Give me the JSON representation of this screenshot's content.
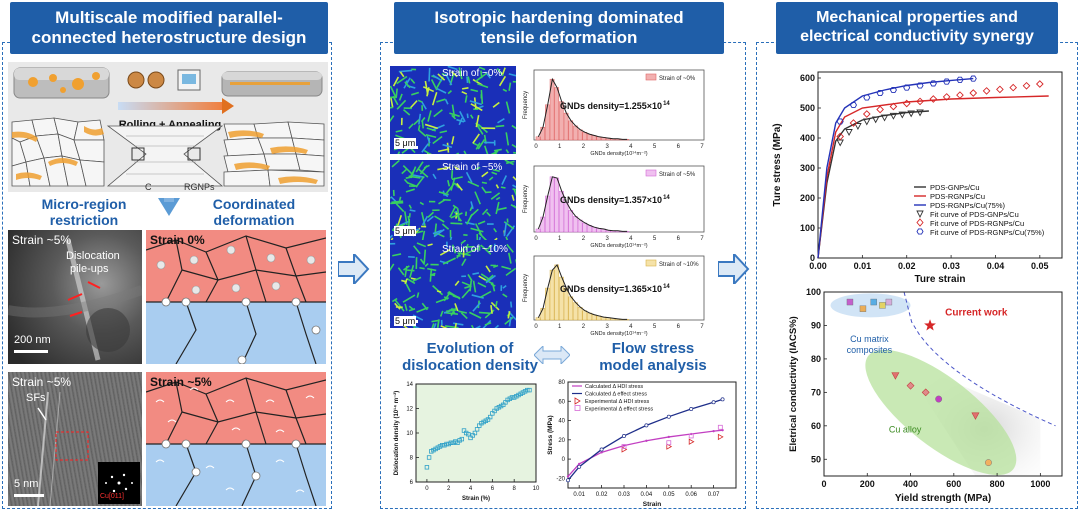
{
  "panel1": {
    "title_lines": [
      "Multiscale modified parallel-",
      "connected heterostructure design"
    ],
    "process_label": "Rolling + Annealing",
    "label_c": "C",
    "label_rgnps": "RGNPs",
    "sub_left_lines": [
      "Micro-region",
      "restriction"
    ],
    "sub_right_lines": [
      "Coordinated",
      "deformation"
    ],
    "tem1": {
      "strain": "Strain ~5%",
      "note_lines": [
        "Dislocation",
        "pile-ups"
      ],
      "scale": "200 nm"
    },
    "tem2": {
      "strain": "Strain ~5%",
      "note": "SFs",
      "scale": "5 nm",
      "fft": "Cu[011]"
    },
    "schem1": {
      "strain": "Strain 0%"
    },
    "schem2": {
      "strain": "Strain ~5%"
    }
  },
  "panel2": {
    "title_lines": [
      "Isotropic hardening dominated",
      "tensile deformation"
    ],
    "maps": [
      {
        "strain": "Strain of ~0%",
        "scale": "5 μm"
      },
      {
        "strain": "Strain of ~5%",
        "scale": "5 μm"
      },
      {
        "strain": "Strain of ~10%",
        "scale": "5 μm"
      }
    ],
    "histograms": [
      {
        "legend": "Strain of ~0%",
        "text": "GNDs density=1.255×10",
        "exp": "14",
        "color": "#e06666",
        "fill": "#f2b0b0"
      },
      {
        "legend": "Strain of ~5%",
        "text": "GNDs density=1.357×10",
        "exp": "14",
        "color": "#d36bd6",
        "fill": "#f0c0f0"
      },
      {
        "legend": "Strain of ~10%",
        "text": "GNDs density=1.365×10",
        "exp": "14",
        "color": "#d9b24a",
        "fill": "#f5e2a8"
      }
    ],
    "hist_ylabel": "Frequency",
    "hist_xlabel": "GNDs density(10¹⁴m⁻²)",
    "hist_ticks": [
      "0",
      "1",
      "2",
      "3",
      "4",
      "5",
      "6",
      "7"
    ],
    "evo_title_lines": [
      "Evolution of",
      "dislocation density"
    ],
    "flow_title_lines": [
      "Flow stress",
      "model analysis"
    ]
  },
  "panel3": {
    "title_lines": [
      "Mechanical properties and",
      "electrical conductivity synergy"
    ],
    "ss_ylabel": "Ture stress (MPa)",
    "ss_xlabel": "Ture strain",
    "legend": [
      {
        "text": "PDS-GNPs/Cu",
        "kind": "line",
        "color": "#333333"
      },
      {
        "text": "PDS-RGNPs/Cu",
        "kind": "line",
        "color": "#d62728"
      },
      {
        "text": "PDS-RGNPs/Cu(75%)",
        "kind": "line",
        "color": "#2433b8"
      },
      {
        "text": "Fit curve of PDS-GNPs/Cu",
        "kind": "tri",
        "color": "#333333"
      },
      {
        "text": "Fit curve of PDS-RGNPs/Cu",
        "kind": "diamond",
        "color": "#d62728"
      },
      {
        "text": "Fit curve of PDS-RGNPs/Cu(75%)",
        "kind": "hex",
        "color": "#2433b8"
      }
    ],
    "ec_ylabel": "Eletrical conductivity (IACS%)",
    "ec_xlabel": "Yield strength (MPa)",
    "current_work": "Current work",
    "cu_matrix_lines": [
      "Cu matrix",
      "composites"
    ],
    "cu_alloy": "Cu alloy"
  },
  "chart_data": [
    {
      "type": "scatter",
      "title": "",
      "xlabel": "Strain (%)",
      "ylabel": "Dislocation density (10¹⁴ m⁻²)",
      "xlim": [
        -1,
        10
      ],
      "ylim": [
        6,
        14
      ],
      "x_ticks": [
        0,
        2,
        4,
        6,
        8,
        10
      ],
      "y_ticks": [
        6,
        8,
        10,
        12,
        14
      ],
      "x": [
        0,
        0.2,
        0.4,
        0.6,
        0.8,
        1.0,
        1.2,
        1.4,
        1.6,
        1.8,
        2.0,
        2.2,
        2.4,
        2.6,
        2.8,
        3.0,
        3.2,
        3.4,
        3.6,
        3.8,
        4.0,
        4.2,
        4.4,
        4.6,
        4.8,
        5.0,
        5.2,
        5.4,
        5.6,
        5.8,
        6.0,
        6.2,
        6.4,
        6.6,
        6.8,
        7.0,
        7.2,
        7.4,
        7.6,
        7.8,
        8.0,
        8.2,
        8.4,
        8.6,
        8.8,
        9.0,
        9.2,
        9.4
      ],
      "y": [
        7.2,
        8.0,
        8.5,
        8.6,
        8.7,
        8.8,
        8.9,
        9.0,
        9.0,
        9.1,
        9.1,
        9.2,
        9.2,
        9.3,
        9.2,
        9.4,
        9.5,
        10.2,
        10.0,
        9.9,
        9.6,
        9.8,
        10.0,
        10.3,
        10.6,
        10.8,
        10.9,
        11.0,
        11.1,
        11.3,
        11.6,
        11.8,
        12.0,
        12.1,
        12.2,
        12.3,
        12.5,
        12.7,
        12.8,
        12.9,
        12.9,
        13.0,
        13.1,
        13.2,
        13.3,
        13.4,
        13.5,
        13.5
      ]
    },
    {
      "type": "line",
      "title": "",
      "xlabel": "Strain",
      "ylabel": "Stress (MPa)",
      "xlim": [
        0.005,
        0.08
      ],
      "ylim": [
        -30,
        80
      ],
      "x_ticks": [
        0.01,
        0.02,
        0.03,
        0.04,
        0.05,
        0.06,
        0.07
      ],
      "y_ticks": [
        -20,
        0,
        20,
        40,
        60,
        80
      ],
      "series": [
        {
          "name": "Calculated Δ HDI stress",
          "color": "#c23fc2",
          "x": [
            0.005,
            0.01,
            0.02,
            0.03,
            0.04,
            0.05,
            0.06,
            0.07,
            0.074
          ],
          "y": [
            -18,
            -5,
            7,
            14,
            19,
            23,
            26,
            29,
            30
          ]
        },
        {
          "name": "Calculated Δ effect stress",
          "color": "#1f2f8a",
          "x": [
            0.005,
            0.01,
            0.02,
            0.03,
            0.04,
            0.05,
            0.06,
            0.07,
            0.074
          ],
          "y": [
            -22,
            -8,
            10,
            24,
            35,
            44,
            52,
            59,
            62
          ]
        },
        {
          "name": "Experimental Δ HDI stress",
          "color": "#d62728",
          "x": [
            0.03,
            0.05,
            0.06,
            0.073
          ],
          "y": [
            10,
            13,
            18,
            23
          ]
        },
        {
          "name": "Experimental Δ effect stress",
          "color": "#d66bd6",
          "x": [
            0.03,
            0.05,
            0.06,
            0.073
          ],
          "y": [
            13,
            17,
            24,
            33
          ]
        }
      ]
    },
    {
      "type": "line",
      "title": "",
      "xlabel": "Ture strain",
      "ylabel": "Ture stress (MPa)",
      "xlim": [
        0,
        0.055
      ],
      "ylim": [
        0,
        620
      ],
      "x_ticks": [
        0.0,
        0.01,
        0.02,
        0.03,
        0.04,
        0.05
      ],
      "y_ticks": [
        0,
        100,
        200,
        300,
        400,
        500,
        600
      ],
      "series": [
        {
          "name": "PDS-GNPs/Cu",
          "color": "#333333",
          "x": [
            0,
            0.002,
            0.004,
            0.006,
            0.01,
            0.015,
            0.02,
            0.025
          ],
          "y": [
            0,
            250,
            390,
            430,
            460,
            475,
            485,
            490
          ]
        },
        {
          "name": "PDS-RGNPs/Cu",
          "color": "#d62728",
          "x": [
            0,
            0.002,
            0.004,
            0.006,
            0.01,
            0.02,
            0.03,
            0.04,
            0.052
          ],
          "y": [
            0,
            270,
            420,
            470,
            500,
            520,
            530,
            535,
            540
          ]
        },
        {
          "name": "PDS-RGNPs/Cu(75%)",
          "color": "#2433b8",
          "x": [
            0,
            0.002,
            0.004,
            0.006,
            0.01,
            0.015,
            0.02,
            0.025,
            0.03,
            0.035
          ],
          "y": [
            0,
            300,
            450,
            500,
            540,
            560,
            575,
            585,
            592,
            598
          ]
        },
        {
          "name": "Fit curve of PDS-GNPs/Cu",
          "color": "#333333",
          "marker": "triangle",
          "x": [
            0.005,
            0.007,
            0.009,
            0.011,
            0.013,
            0.015,
            0.017,
            0.019,
            0.021,
            0.023
          ],
          "y": [
            385,
            420,
            440,
            455,
            462,
            468,
            474,
            478,
            482,
            485
          ]
        },
        {
          "name": "Fit curve of PDS-RGNPs/Cu",
          "color": "#d62728",
          "marker": "diamond",
          "x": [
            0.005,
            0.008,
            0.011,
            0.014,
            0.017,
            0.02,
            0.023,
            0.026,
            0.029,
            0.032,
            0.035,
            0.038,
            0.041,
            0.044,
            0.047,
            0.05
          ],
          "y": [
            405,
            450,
            480,
            495,
            505,
            515,
            522,
            530,
            537,
            543,
            550,
            557,
            562,
            568,
            574,
            580
          ]
        },
        {
          "name": "Fit curve of PDS-RGNPs/Cu(75%)",
          "color": "#2433b8",
          "marker": "hexagon",
          "x": [
            0.005,
            0.008,
            0.011,
            0.014,
            0.017,
            0.02,
            0.023,
            0.026,
            0.029,
            0.032,
            0.035
          ],
          "y": [
            455,
            510,
            535,
            550,
            560,
            568,
            575,
            582,
            588,
            594,
            598
          ]
        }
      ]
    },
    {
      "type": "scatter",
      "title": "",
      "xlabel": "Yield strength (MPa)",
      "ylabel": "Eletrical conductivity (IACS%)",
      "xlim": [
        0,
        1100
      ],
      "ylim": [
        45,
        100
      ],
      "x_ticks": [
        0,
        200,
        400,
        600,
        800,
        1000
      ],
      "y_ticks": [
        50,
        60,
        70,
        80,
        90,
        100
      ],
      "series": [
        {
          "name": "Cu matrix composites",
          "x": [
            120,
            180,
            230,
            270,
            300
          ],
          "y": [
            97,
            95,
            97,
            96,
            97
          ]
        },
        {
          "name": "Current work",
          "x": [
            490
          ],
          "y": [
            90
          ]
        },
        {
          "name": "Cu alloy",
          "x": [
            330,
            400,
            470,
            530,
            700,
            760
          ],
          "y": [
            75,
            72,
            70,
            68,
            63,
            49
          ]
        }
      ]
    }
  ]
}
